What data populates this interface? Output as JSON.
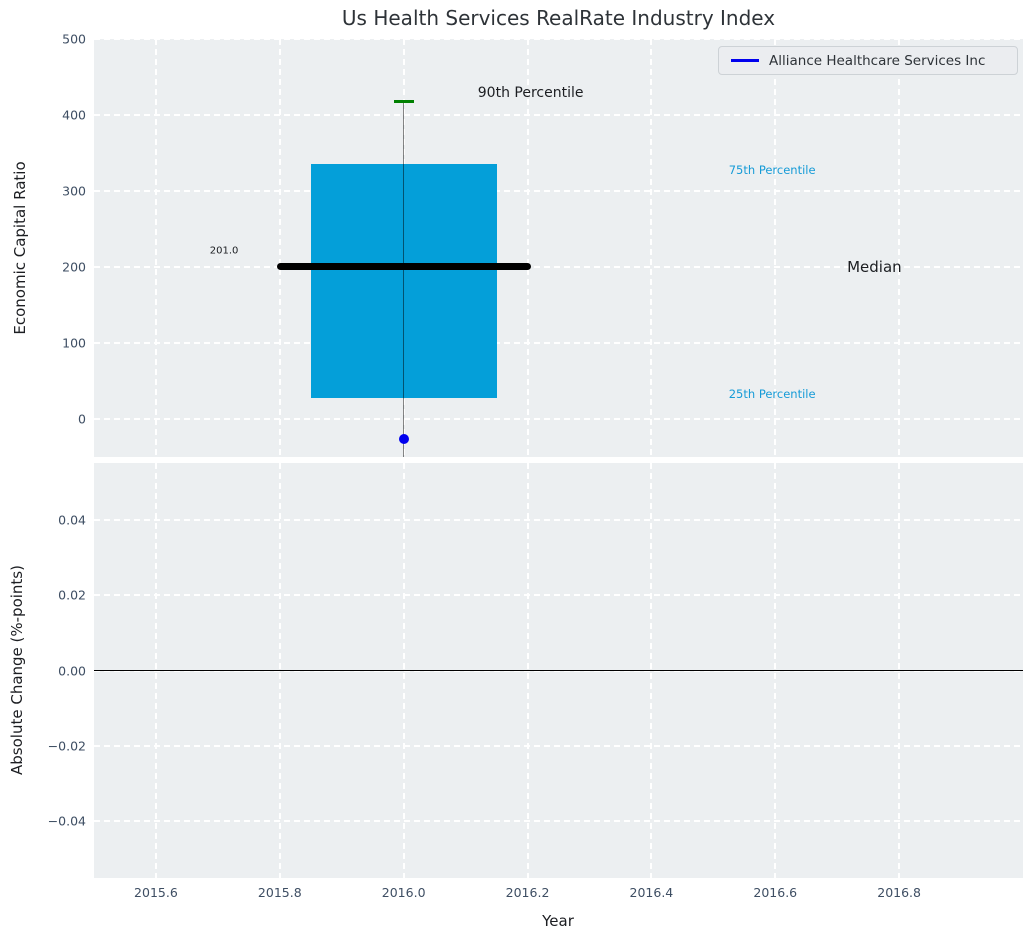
{
  "figure": {
    "title": "Us Health Services RealRate Industry Index"
  },
  "legend": {
    "label": "Alliance Healthcare Services Inc"
  },
  "colors": {
    "figure_bg": "#ffffff",
    "axes_bg": "#eceff1",
    "grid": "#ffffff",
    "tick_label": "#3e4e63",
    "text_dark": "#1c1e22",
    "box_fill": "#049fd9",
    "median_line": "#000000",
    "whisker": "rgba(0,0,0,0.48)",
    "cap_green": "#008000",
    "company_blue": "#0000ee",
    "accent": "#169bd7",
    "zero_line": "#000000",
    "legend_bg": "#ebedf0",
    "legend_border": "#cdd2d6"
  },
  "chart_data": [
    {
      "type": "boxplot",
      "title": "Us Health Services RealRate Industry Index",
      "ylabel": "Economic Capital Ratio",
      "xlim": [
        2015.5,
        2017.0
      ],
      "ylim": [
        -50,
        500
      ],
      "xticks": [
        2015.6,
        2015.8,
        2016.0,
        2016.2,
        2016.4,
        2016.6,
        2016.8
      ],
      "yticks": [
        0,
        100,
        200,
        300,
        400,
        500
      ],
      "ytick_labels": [
        "0",
        "100",
        "200",
        "300",
        "400",
        "500"
      ],
      "grid": true,
      "legend_entries": [
        "Alliance Healthcare Services Inc"
      ],
      "legend_position": "upper right",
      "box": {
        "x": 2016.0,
        "q1": 27,
        "median": 201,
        "q3": 335,
        "p90": 418,
        "whisker_extends_below_axis": true,
        "box_halfwidth_years": 0.15,
        "median_halfwidth_years": 0.205,
        "cap_halfwidth_years": 0.016
      },
      "company_point": {
        "name": "Alliance Healthcare Services Inc",
        "x": 2016.0,
        "y": -26
      },
      "annotations": [
        {
          "text": "201.0",
          "x": 2015.71,
          "y": 221,
          "color": "dark",
          "size": 10
        },
        {
          "text": "90th Percentile",
          "x": 2016.205,
          "y": 429,
          "color": "dark",
          "size": 14
        },
        {
          "text": "75th Percentile",
          "x": 2016.595,
          "y": 327,
          "color": "accent",
          "size": 11.5
        },
        {
          "text": "Median",
          "x": 2016.76,
          "y": 200,
          "color": "dark",
          "size": 15
        },
        {
          "text": "25th Percentile",
          "x": 2016.595,
          "y": 33,
          "color": "accent",
          "size": 11.5
        }
      ]
    },
    {
      "type": "line",
      "ylabel": "Absolute Change (%-points)",
      "xlabel": "Year",
      "xlim": [
        2015.5,
        2017.0
      ],
      "ylim": [
        -0.055,
        0.055
      ],
      "xticks": [
        2015.6,
        2015.8,
        2016.0,
        2016.2,
        2016.4,
        2016.6,
        2016.8
      ],
      "xtick_labels": [
        "2015.6",
        "2015.8",
        "2016.0",
        "2016.2",
        "2016.4",
        "2016.6",
        "2016.8"
      ],
      "yticks": [
        0.04,
        0.02,
        0.0,
        -0.02,
        -0.04
      ],
      "ytick_labels": [
        "0.04",
        "0.02",
        "0.00",
        "−0.02",
        "−0.04"
      ],
      "grid": true,
      "zero_line": 0.0,
      "series": []
    }
  ]
}
